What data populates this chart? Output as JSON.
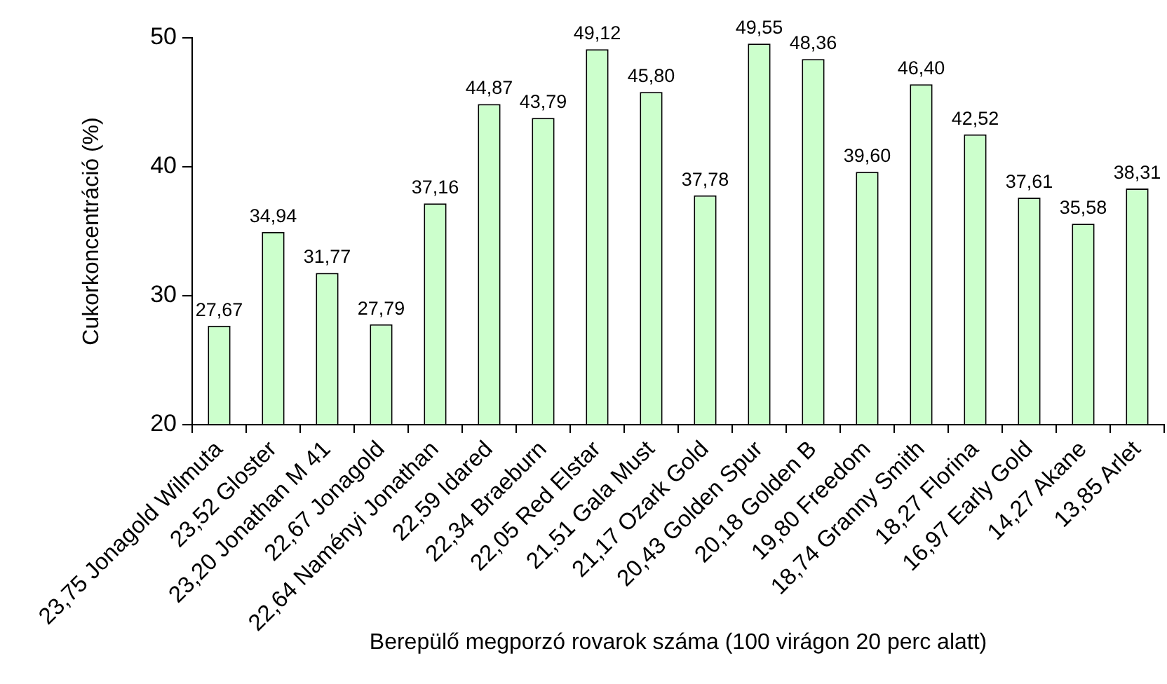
{
  "chart_data": {
    "type": "bar",
    "xlabel": "Berepülő megporzó rovarok száma (100 virágon 20 perc alatt)",
    "ylabel": "Cukorkoncentráció (%)",
    "categories": [
      "23,75 Jonagold Wilmuta",
      "23,52 Gloster",
      "23,20 Jonathan M 41",
      "22,67 Jonagold",
      "22,64 Naményi Jonathan",
      "22,59 Idared",
      "22,34 Braeburn",
      "22,05 Red Elstar",
      "21,51 Gala Must",
      "21,17 Ozark Gold",
      "20,43 Golden Spur",
      "20,18 Golden B",
      "19,80 Freedom",
      "18,74 Granny Smith",
      "18,27 Florina",
      "16,97 Early Gold",
      "14,27 Akane",
      "13,85 Arlet"
    ],
    "values": [
      27.67,
      34.94,
      31.77,
      27.79,
      37.16,
      44.87,
      43.79,
      49.12,
      45.8,
      37.78,
      49.55,
      48.36,
      39.6,
      46.4,
      42.52,
      37.61,
      35.58,
      38.31
    ],
    "value_labels": [
      "27,67",
      "34,94",
      "31,77",
      "27,79",
      "37,16",
      "44,87",
      "43,79",
      "49,12",
      "45,80",
      "37,78",
      "49,55",
      "48,36",
      "39,60",
      "46,40",
      "42,52",
      "37,61",
      "35,58",
      "38,31"
    ],
    "color": "#ccffcc",
    "ylim": [
      20,
      50
    ],
    "yticks": [
      20,
      30,
      40,
      50
    ]
  }
}
